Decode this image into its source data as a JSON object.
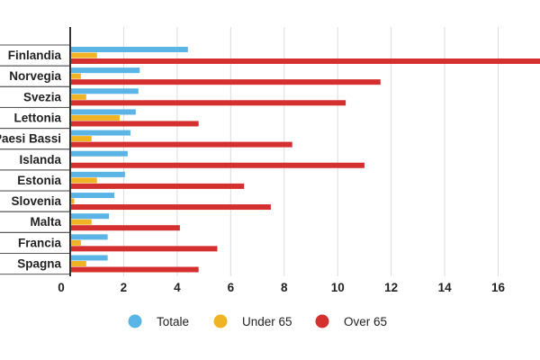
{
  "chart_data": {
    "type": "bar",
    "orientation": "horizontal",
    "categories": [
      "Finlandia",
      "Norvegia",
      "Svezia",
      "Lettonia",
      "Paesi Bassi",
      "Islanda",
      "Estonia",
      "Slovenia",
      "Malta",
      "Francia",
      "Spagna"
    ],
    "series": [
      {
        "name": "Totale",
        "color": "#5ab4e5",
        "values": [
          4.4,
          2.6,
          2.55,
          2.45,
          2.25,
          2.15,
          2.05,
          1.65,
          1.45,
          1.4,
          1.4
        ]
      },
      {
        "name": "Under 65",
        "color": "#f0b323",
        "values": [
          1.0,
          0.4,
          0.6,
          1.85,
          0.8,
          0.0,
          1.0,
          0.15,
          0.8,
          0.4,
          0.6
        ]
      },
      {
        "name": "Over 65",
        "color": "#d3302f",
        "values": [
          18.0,
          11.6,
          10.3,
          4.8,
          8.3,
          11.0,
          6.5,
          7.5,
          4.1,
          5.5,
          4.8
        ]
      }
    ],
    "xlim": [
      0,
      18
    ],
    "xticks": [
      "0",
      "2",
      "4",
      "6",
      "8",
      "10",
      "12",
      "14",
      "16",
      "18"
    ],
    "grid": true,
    "legend_position": "bottom"
  }
}
